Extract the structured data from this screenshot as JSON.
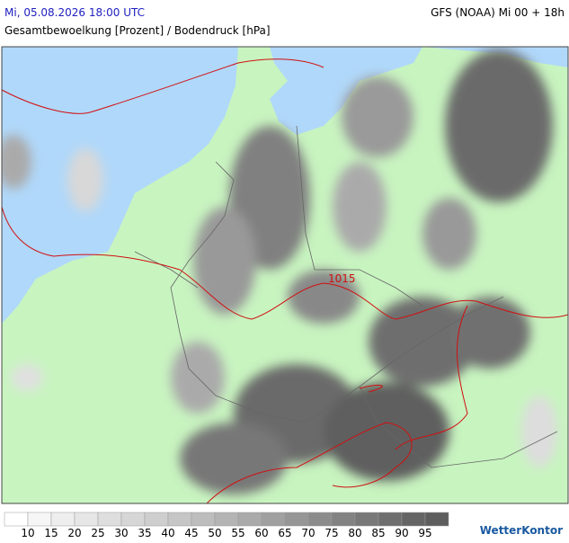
{
  "header": {
    "datetime": "Mi, 05.08.2026 18:00 UTC",
    "model": "GFS (NOAA) Mi 00 + 18h",
    "subtitle": "Gesamtbewoelkung [Prozent] / Bodendruck [hPa]"
  },
  "map": {
    "isobar_label": "1015"
  },
  "legend": {
    "ticks": [
      10,
      15,
      20,
      25,
      30,
      35,
      40,
      45,
      50,
      55,
      60,
      65,
      70,
      75,
      80,
      85,
      90,
      95
    ],
    "colors": [
      "#ffffff",
      "#f6f6f6",
      "#eeeeee",
      "#e6e6e6",
      "#dedede",
      "#d6d6d6",
      "#cecece",
      "#c6c6c6",
      "#bdbdbd",
      "#b4b4b4",
      "#aaaaaa",
      "#a0a0a0",
      "#969696",
      "#8c8c8c",
      "#828282",
      "#787878",
      "#6e6e6e",
      "#656565",
      "#5e5e5e"
    ]
  },
  "logo": "WetterKontor"
}
